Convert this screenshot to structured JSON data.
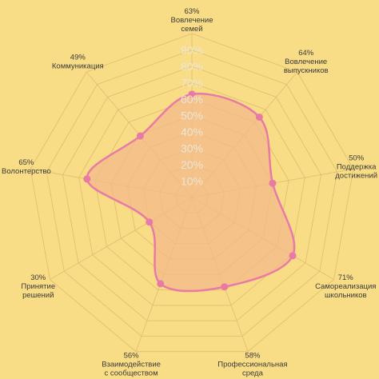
{
  "chart_data": {
    "type": "radar",
    "categories": [
      [
        "Вовлечение",
        "семей"
      ],
      [
        "Вовлечение",
        "выпускников"
      ],
      [
        "Поддержка",
        "достижений"
      ],
      [
        "Самореализация",
        "школьников"
      ],
      [
        "Профессиональная",
        "среда"
      ],
      [
        "Взаимодействие",
        "с сообществом"
      ],
      [
        "Принятие",
        "решений"
      ],
      [
        "Волонтерство"
      ],
      [
        "Коммуникация"
      ]
    ],
    "values": [
      63,
      64,
      50,
      71,
      58,
      56,
      30,
      65,
      49
    ],
    "value_labels": [
      "63%",
      "64%",
      "50%",
      "71%",
      "58%",
      "56%",
      "30%",
      "65%",
      "49%"
    ],
    "ylim": [
      0,
      100
    ],
    "yticks": [
      {
        "value": 10,
        "label": "10%"
      },
      {
        "value": 20,
        "label": "20%"
      },
      {
        "value": 30,
        "label": "30%"
      },
      {
        "value": 40,
        "label": "40%"
      },
      {
        "value": 50,
        "label": "50%"
      },
      {
        "value": 60,
        "label": "60%"
      },
      {
        "value": 70,
        "label": "70%"
      },
      {
        "value": 80,
        "label": "80%"
      },
      {
        "value": 90,
        "label": "90%"
      }
    ],
    "color": "#e97aa6",
    "fill": "#f3b98a",
    "grid_color": "#e2c272"
  }
}
